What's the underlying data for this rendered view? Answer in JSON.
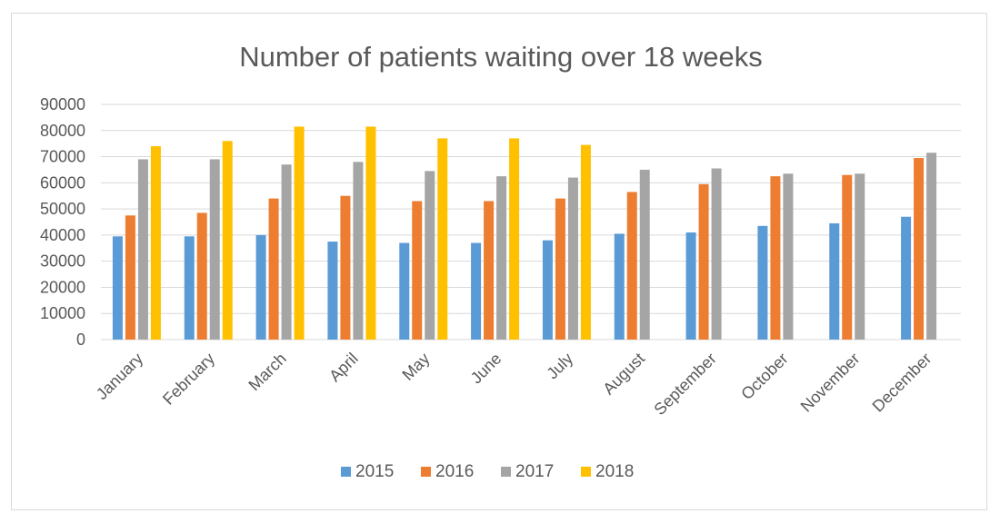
{
  "chart_data": {
    "type": "bar",
    "title": "Number of patients waiting over 18 weeks",
    "xlabel": "",
    "ylabel": "",
    "ylim": [
      0,
      90000
    ],
    "yticks": [
      0,
      10000,
      20000,
      30000,
      40000,
      50000,
      60000,
      70000,
      80000,
      90000
    ],
    "grid": true,
    "legend_position": "bottom",
    "categories": [
      "January",
      "February",
      "March",
      "April",
      "May",
      "June",
      "July",
      "August",
      "September",
      "October",
      "November",
      "December"
    ],
    "series": [
      {
        "name": "2015",
        "color": "#5b9bd5",
        "values": [
          39500,
          39500,
          40000,
          37500,
          37000,
          37000,
          38000,
          40500,
          41000,
          43500,
          44500,
          47000
        ]
      },
      {
        "name": "2016",
        "color": "#ed7d31",
        "values": [
          47500,
          48500,
          54000,
          55000,
          53000,
          53000,
          54000,
          56500,
          59500,
          62500,
          63000,
          69500
        ]
      },
      {
        "name": "2017",
        "color": "#a5a5a5",
        "values": [
          69000,
          69000,
          67000,
          68000,
          64500,
          62500,
          62000,
          65000,
          65500,
          63500,
          63500,
          71500
        ]
      },
      {
        "name": "2018",
        "color": "#ffc000",
        "values": [
          74000,
          76000,
          81500,
          81500,
          77000,
          77000,
          74500,
          null,
          null,
          null,
          null,
          null
        ]
      }
    ]
  }
}
